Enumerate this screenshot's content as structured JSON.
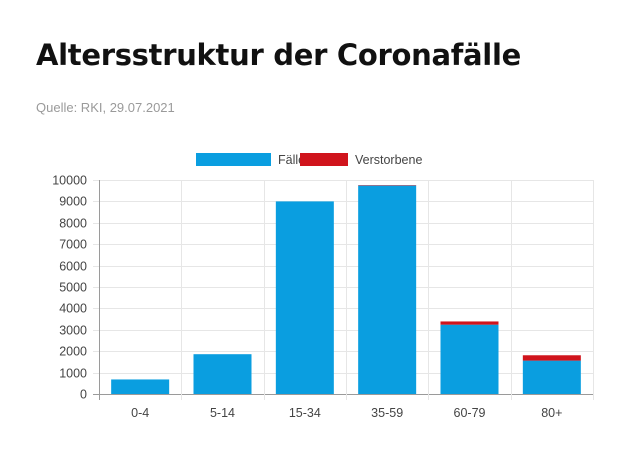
{
  "header": {
    "title": "Altersstruktur der Coronafälle",
    "source": "Quelle: RKI, 29.07.2021"
  },
  "chart_data": {
    "type": "bar",
    "stacked": true,
    "categories": [
      "0-4",
      "5-14",
      "15-34",
      "35-59",
      "60-79",
      "80+"
    ],
    "series": [
      {
        "name": "Fälle",
        "color": "#0a9ee0",
        "values": [
          680,
          1860,
          9000,
          9740,
          3240,
          1560
        ]
      },
      {
        "name": "Verstorbene",
        "color": "#d0141c",
        "values": [
          0,
          0,
          0,
          20,
          150,
          250
        ]
      }
    ],
    "ylim": [
      0,
      10000
    ],
    "yticks": [
      "0",
      "1000",
      "2000",
      "3000",
      "4000",
      "5000",
      "6000",
      "7000",
      "8000",
      "9000",
      "10000"
    ],
    "grid": true,
    "legend": "top"
  }
}
